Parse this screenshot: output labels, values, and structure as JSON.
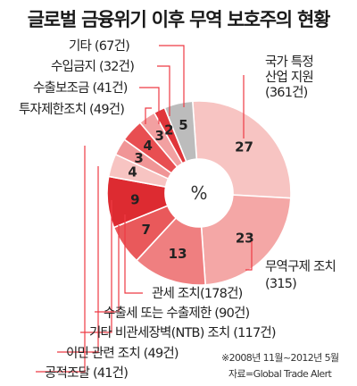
{
  "chart_data": {
    "type": "pie",
    "title": "글로벌 금융위기 이후 무역 보호주의 현황",
    "center_label": "%",
    "slices": [
      {
        "name": "국가 특정 산업 지원",
        "count": "(361건)",
        "percent": 27,
        "color": "#f7c4c2"
      },
      {
        "name": "무역구제 조치",
        "count": "(315)",
        "percent": 23,
        "color": "#f4a7a6"
      },
      {
        "name": "관세 조치",
        "count": "(178건)",
        "percent": 13,
        "color": "#ef7f80"
      },
      {
        "name": "수출세 또는 수출제한",
        "count": "(90건)",
        "percent": 7,
        "color": "#e9595b"
      },
      {
        "name": "기타 비관세장벽(NTB) 조치",
        "count": "(117건)",
        "percent": 9,
        "color": "#dd2b31"
      },
      {
        "name": "이민 관련 조치",
        "count": "(49건)",
        "percent": 4,
        "color": "#f7c4c2"
      },
      {
        "name": "공적조달",
        "count": "(41건)",
        "percent": 3,
        "color": "#f09596"
      },
      {
        "name": "투자제한조치",
        "count": "(49건)",
        "percent": 4,
        "color": "#e84e51"
      },
      {
        "name": "수출보조금",
        "count": "(41건)",
        "percent": 3,
        "color": "#f2a0a1"
      },
      {
        "name": "수입금지",
        "count": "(32건)",
        "percent": 2,
        "color": "#e0353a"
      },
      {
        "name": "기타",
        "count": "(67건)",
        "percent": 5,
        "color": "#bcbcbc"
      }
    ]
  },
  "labels": {
    "industry_line1": "국가 특정",
    "industry_line2": "산업 지원",
    "industry_line3": "(361건)",
    "trade_remedy_line1": "무역구제 조치",
    "trade_remedy_line2": "(315)",
    "tariff": "관세 조치(178건)",
    "export_tax": "수출세 또는 수출제한 (90건)",
    "ntb": "기타 비관세장벽(NTB) 조치 (117건)",
    "migration": "이민 관련 조치 (49건)",
    "procurement": "공적조달 (41건)",
    "investment": "투자제한조치 (49건)",
    "export_subsidy": "수출보조금 (41건)",
    "import_ban": "수입금지 (32건)",
    "other": "기타 (67건)"
  },
  "notes": {
    "period": "※2008년 11월~2012년 5월",
    "source": "자료=Global Trade Alert"
  }
}
